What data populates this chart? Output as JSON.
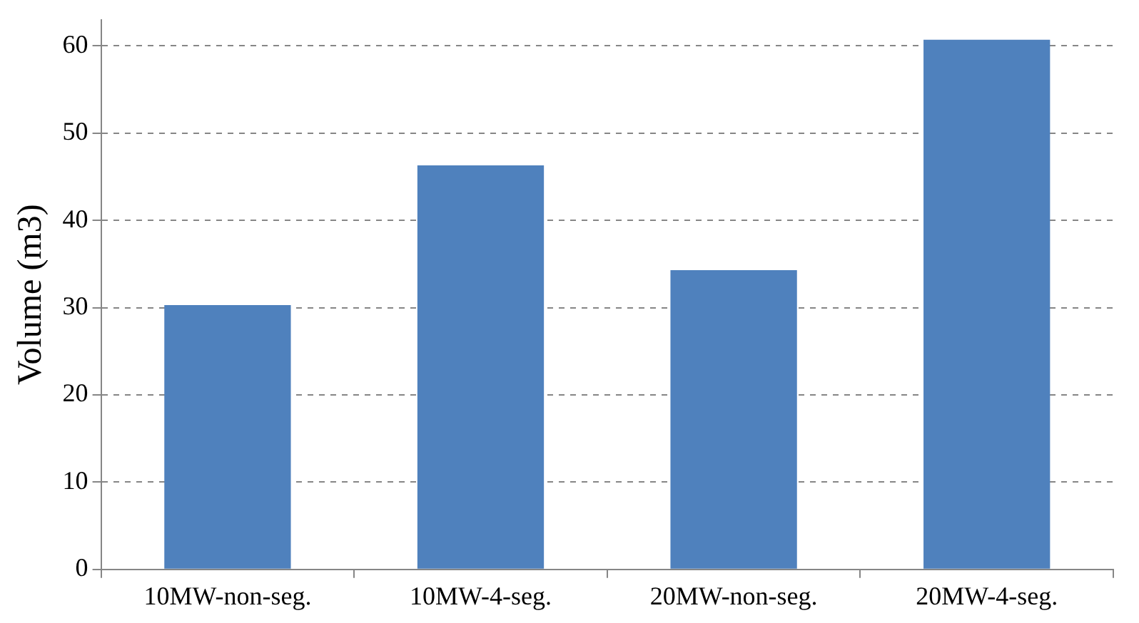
{
  "chart_data": {
    "type": "bar",
    "ylabel": "Volume (m3)",
    "categories": [
      "10MW-non-seg.",
      "10MW-4-seg.",
      "20MW-non-seg.",
      "20MW-4-seg."
    ],
    "values": [
      30.3,
      46.3,
      34.3,
      60.7
    ],
    "color": "#4f81bd",
    "ylim": [
      0,
      63
    ],
    "yticks": [
      0,
      10,
      20,
      30,
      40,
      50,
      60
    ],
    "grid": "y",
    "legend": false
  }
}
